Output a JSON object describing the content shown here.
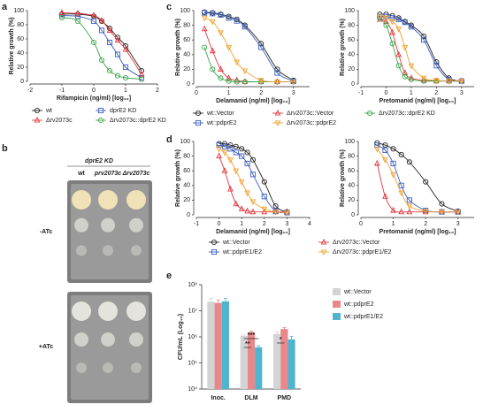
{
  "chart_data": [
    {
      "type": "dose_response",
      "panel_label": "a",
      "series": [
        {
          "name": "wt",
          "color": "#222222",
          "marker": "circle"
        },
        {
          "name": "dprE2 KD",
          "color": "#3b5fc0",
          "marker": "square"
        },
        {
          "name": "Δrv2073c",
          "color": "#e0393e",
          "marker": "triangle"
        },
        {
          "name": "Δrv2073c::dprE2 KD",
          "color": "#3aa64a",
          "marker": "circle"
        }
      ],
      "plots": [
        {
          "xlabel": "Rifampicin (ng/ml) [log₁₀]",
          "ylabel": "Relative growth (%)",
          "xlim": [
            -2,
            2
          ],
          "xticks": [
            -2,
            -1,
            0,
            1,
            2
          ],
          "ylim": [
            0,
            100
          ],
          "yticks": [
            0,
            20,
            40,
            60,
            80,
            100
          ],
          "data": [
            {
              "x": [
                -1,
                -0.5,
                0,
                0.25,
                0.5,
                0.75,
                1,
                1.5
              ],
              "values": [
                95,
                95,
                92,
                85,
                75,
                62,
                50,
                15
              ]
            },
            {
              "x": [
                -1,
                -0.5,
                0,
                0.25,
                0.5,
                0.75,
                1,
                1.5
              ],
              "values": [
                93,
                92,
                85,
                72,
                55,
                38,
                20,
                5
              ]
            },
            {
              "x": [
                -1,
                -0.5,
                0,
                0.25,
                0.5,
                0.75,
                1,
                1.5
              ],
              "values": [
                97,
                96,
                93,
                86,
                72,
                58,
                45,
                10
              ]
            },
            {
              "x": [
                -1,
                -0.5,
                0,
                0.25,
                0.5,
                0.75,
                1,
                1.5
              ],
              "values": [
                90,
                85,
                55,
                30,
                15,
                8,
                5,
                3
              ]
            }
          ]
        }
      ]
    },
    {
      "type": "dose_response",
      "panel_label": "c",
      "series": [
        {
          "name": "wt::Vector",
          "color": "#222222",
          "marker": "circle"
        },
        {
          "name": "Δrv2073c::Vector",
          "color": "#e0393e",
          "marker": "triangle"
        },
        {
          "name": "Δrv2073c::dprE2 KD",
          "color": "#3aa64a",
          "marker": "circle"
        },
        {
          "name": "wt::pdprE2",
          "color": "#3b5fc0",
          "marker": "square"
        },
        {
          "name": "Δrv2073c::pdprE2",
          "color": "#f0a030",
          "marker": "tridown"
        }
      ],
      "plots": [
        {
          "xlabel": "Delamanid (ng/ml) [log₁₀]",
          "ylabel": "Relative growth (%)",
          "xlim": [
            0,
            3.5
          ],
          "xticks": [
            0,
            1,
            2,
            3
          ],
          "ylim": [
            0,
            100
          ],
          "yticks": [
            0,
            20,
            40,
            60,
            80,
            100
          ],
          "data": [
            {
              "x": [
                0.25,
                0.5,
                0.75,
                1,
                1.25,
                1.5,
                2,
                2.5,
                3
              ],
              "values": [
                98,
                97,
                95,
                92,
                88,
                80,
                55,
                20,
                5
              ]
            },
            {
              "x": [
                0.25,
                0.5,
                0.75,
                1,
                1.25,
                1.5,
                2,
                2.5,
                3
              ],
              "values": [
                75,
                45,
                20,
                8,
                5,
                3,
                3,
                3,
                3
              ]
            },
            {
              "x": [
                0.25,
                0.5,
                0.75,
                1,
                1.25,
                1.5,
                2,
                2.5,
                3
              ],
              "values": [
                50,
                20,
                8,
                4,
                3,
                3,
                3,
                3,
                3
              ]
            },
            {
              "x": [
                0.25,
                0.5,
                0.75,
                1,
                1.25,
                1.5,
                2,
                2.5,
                3
              ],
              "values": [
                97,
                96,
                94,
                90,
                86,
                78,
                50,
                15,
                4
              ]
            },
            {
              "x": [
                0.25,
                0.5,
                0.75,
                1,
                1.25,
                1.5,
                2,
                2.5,
                3
              ],
              "values": [
                90,
                85,
                70,
                50,
                30,
                18,
                5,
                3,
                3
              ]
            }
          ]
        },
        {
          "xlabel": "Pretomanid (ng/ml) [log₁₀]",
          "ylabel": "Relative growth (%)",
          "xlim": [
            -1,
            3.5
          ],
          "xticks": [
            -1,
            0,
            1,
            2,
            3
          ],
          "ylim": [
            0,
            100
          ],
          "yticks": [
            0,
            20,
            40,
            60,
            80,
            100
          ],
          "data": [
            {
              "x": [
                -0.25,
                0,
                0.25,
                0.5,
                0.75,
                1,
                1.5,
                2,
                2.5,
                3
              ],
              "values": [
                95,
                95,
                93,
                90,
                85,
                80,
                65,
                30,
                8,
                4
              ]
            },
            {
              "x": [
                -0.25,
                0,
                0.25,
                0.5,
                0.75,
                1,
                1.5,
                2,
                2.5,
                3
              ],
              "values": [
                88,
                85,
                70,
                40,
                15,
                8,
                5,
                4,
                4,
                4
              ]
            },
            {
              "x": [
                -0.25,
                0,
                0.25,
                0.5,
                0.75,
                1,
                1.5,
                2,
                2.5,
                3
              ],
              "values": [
                90,
                80,
                55,
                25,
                10,
                6,
                4,
                4,
                4,
                4
              ]
            },
            {
              "x": [
                -0.25,
                0,
                0.25,
                0.5,
                0.75,
                1,
                1.5,
                2,
                2.5,
                3
              ],
              "values": [
                92,
                92,
                90,
                88,
                84,
                78,
                60,
                25,
                6,
                4
              ]
            },
            {
              "x": [
                -0.25,
                0,
                0.25,
                0.5,
                0.75,
                1,
                1.5,
                2,
                2.5,
                3
              ],
              "values": [
                92,
                90,
                85,
                75,
                50,
                25,
                8,
                5,
                4,
                4
              ]
            }
          ]
        }
      ]
    },
    {
      "type": "dose_response",
      "panel_label": "d",
      "series": [
        {
          "name": "wt::Vector",
          "color": "#222222",
          "marker": "circle"
        },
        {
          "name": "Δrv2073c::Vector",
          "color": "#e0393e",
          "marker": "triangle"
        },
        {
          "name": "wt::pdprE1/E2",
          "color": "#3b5fc0",
          "marker": "square"
        },
        {
          "name": "Δrv2073c::pdprE1/E2",
          "color": "#f0a030",
          "marker": "tridown"
        }
      ],
      "plots": [
        {
          "xlabel": "Delamanid (ng/ml) [log₁₀]",
          "ylabel": "Relative growth (%)",
          "xlim": [
            -1,
            4
          ],
          "xticks": [
            -1,
            0,
            1,
            2,
            3,
            4
          ],
          "ylim": [
            0,
            100
          ],
          "yticks": [
            0,
            20,
            40,
            60,
            80,
            100
          ],
          "data": [
            {
              "x": [
                0,
                0.25,
                0.5,
                0.75,
                1,
                1.25,
                1.5,
                2,
                2.5,
                3
              ],
              "values": [
                97,
                97,
                95,
                93,
                90,
                85,
                75,
                45,
                12,
                4
              ]
            },
            {
              "x": [
                0,
                0.25,
                0.5,
                0.75,
                1,
                1.25,
                1.5,
                2,
                2.5,
                3
              ],
              "values": [
                80,
                60,
                35,
                15,
                8,
                5,
                4,
                4,
                4,
                4
              ]
            },
            {
              "x": [
                0,
                0.25,
                0.5,
                0.75,
                1,
                1.25,
                1.5,
                2,
                2.5,
                3
              ],
              "values": [
                95,
                93,
                90,
                85,
                80,
                70,
                55,
                25,
                5,
                3
              ]
            },
            {
              "x": [
                0,
                0.25,
                0.5,
                0.75,
                1,
                1.25,
                1.5,
                2,
                2.5,
                3
              ],
              "values": [
                90,
                85,
                75,
                60,
                45,
                30,
                18,
                8,
                4,
                3
              ]
            }
          ]
        },
        {
          "xlabel": "Pretomanid (ng/ml) [log₁₀]",
          "ylabel": "Relative growth (%)",
          "xlim": [
            0,
            3.5
          ],
          "xticks": [
            0,
            1,
            2,
            3
          ],
          "ylim": [
            0,
            100
          ],
          "yticks": [
            0,
            20,
            40,
            60,
            80,
            100
          ],
          "data": [
            {
              "x": [
                0.5,
                0.75,
                1,
                1.25,
                1.5,
                2,
                2.5,
                3
              ],
              "values": [
                98,
                95,
                90,
                82,
                72,
                45,
                15,
                5
              ]
            },
            {
              "x": [
                0.5,
                0.75,
                1,
                1.25,
                1.5,
                2,
                2.5,
                3
              ],
              "values": [
                70,
                25,
                6,
                4,
                4,
                4,
                4,
                4
              ]
            },
            {
              "x": [
                0.5,
                0.75,
                1,
                1.25,
                1.5,
                2,
                2.5,
                3
              ],
              "values": [
                95,
                88,
                70,
                40,
                20,
                6,
                4,
                4
              ]
            },
            {
              "x": [
                0.5,
                0.75,
                1,
                1.25,
                1.5,
                2,
                2.5,
                3
              ],
              "values": [
                90,
                75,
                55,
                30,
                12,
                5,
                4,
                4
              ]
            }
          ]
        }
      ]
    },
    {
      "type": "bar",
      "panel_label": "e",
      "log_scale": true,
      "ylabel": "CFU/mL (Log₁₀)",
      "categories": [
        "Inoc.",
        "DLM",
        "PMD"
      ],
      "ylim": [
        10000,
        100000000
      ],
      "yticks": [
        {
          "value": 10000,
          "label": "10⁴"
        },
        {
          "value": 100000,
          "label": "10⁵"
        },
        {
          "value": 1000000,
          "label": "10⁶"
        },
        {
          "value": 10000000,
          "label": "10⁷"
        },
        {
          "value": 100000000,
          "label": "10⁸"
        }
      ],
      "series": [
        {
          "name": "wt::Vector",
          "color": "#d3d3d6",
          "values": [
            22000000,
            1100000,
            1300000
          ],
          "errors": [
            8000000,
            100000,
            300000
          ]
        },
        {
          "name": "wt::pdprE2",
          "color": "#e8888a",
          "values": [
            20000000,
            1500000,
            2000000
          ],
          "errors": [
            6000000,
            150000,
            300000
          ]
        },
        {
          "name": "wt::pdprE1/E2",
          "color": "#4fb5cf",
          "values": [
            23000000,
            400000,
            800000
          ],
          "errors": [
            7000000,
            60000,
            250000
          ]
        }
      ],
      "annotations": [
        "***",
        "**",
        "*"
      ]
    }
  ],
  "panel_b": {
    "panel_label": "b",
    "header": "dprE2 KD",
    "columns": [
      "wt",
      "prv2073c",
      "Δrv2073c"
    ],
    "rows": [
      "-ATc",
      "+ATc"
    ]
  }
}
